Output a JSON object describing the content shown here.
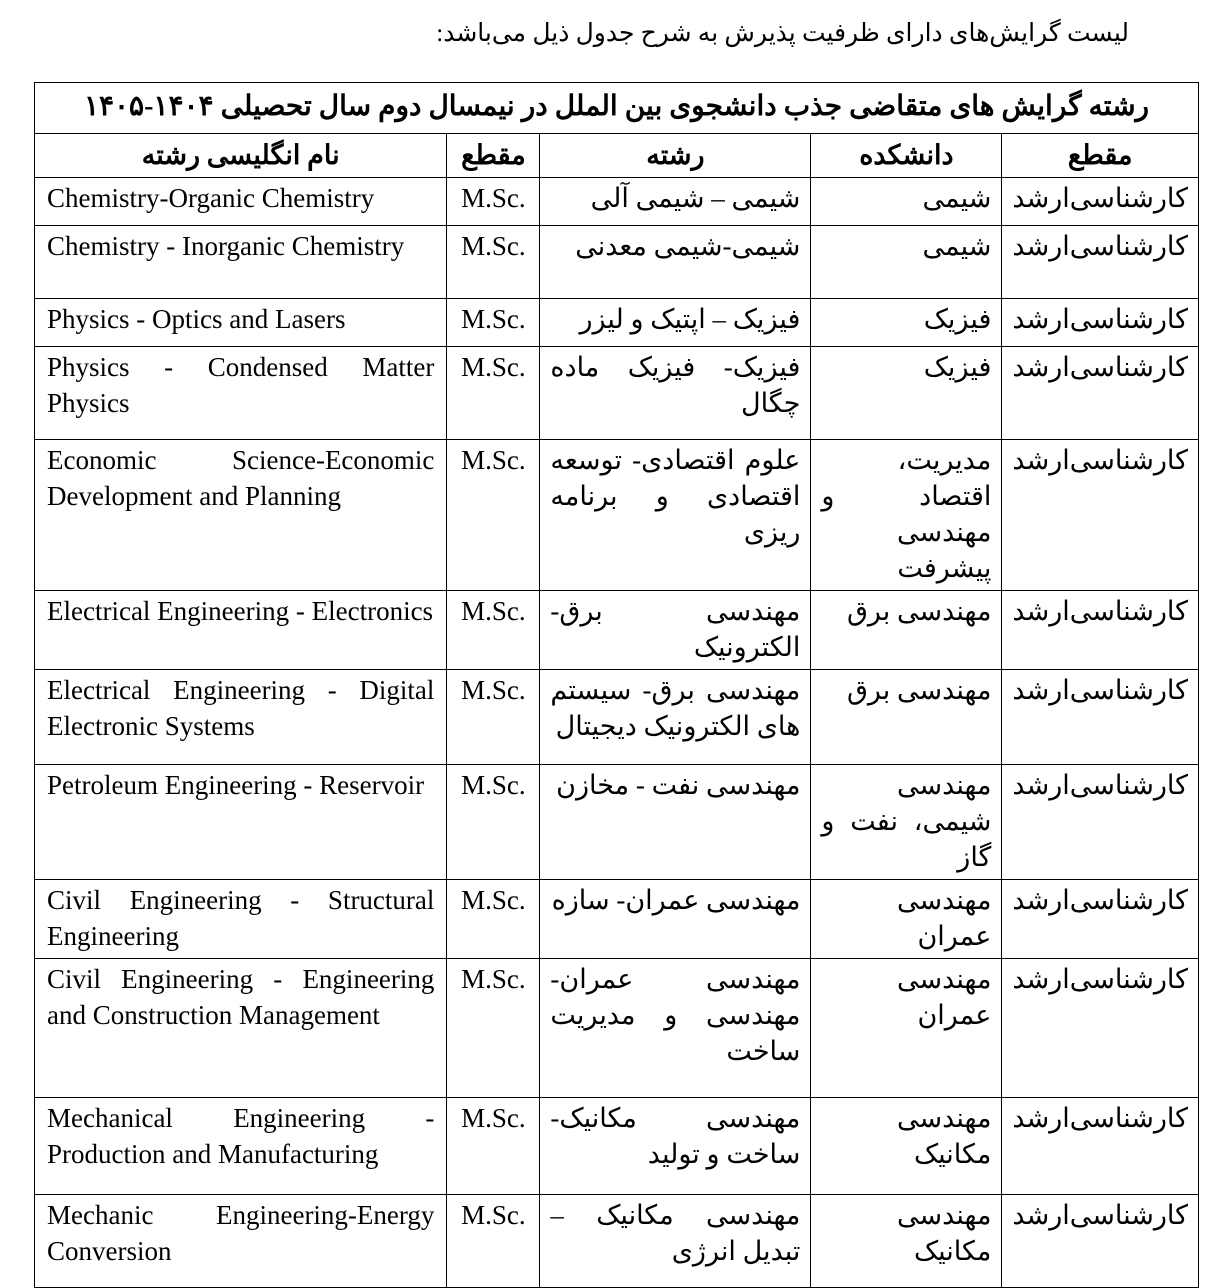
{
  "intro": "لیست گرایش‌های دارای ظرفیت پذیرش به شرح جدول ذیل می‌باشد:",
  "table": {
    "title": "رشته گرایش های متقاضی جذب دانشجوی بین الملل در نیمسال دوم سال تحصیلی ۱۴۰۴-۱۴۰۵",
    "headers": [
      "مقطع",
      "دانشکده",
      "رشته",
      "مقطع",
      "نام انگلیسی رشته"
    ],
    "rows": [
      {
        "level": "کارشناسی‌ارشد",
        "faculty": "شیمی",
        "field": "شیمی – شیمی آلی",
        "degree": "M.Sc.",
        "english": "Chemistry-Organic Chemistry"
      },
      {
        "level": "کارشناسی‌ارشد",
        "faculty": "شیمی",
        "field": "شیمی-شیمی معدنی",
        "degree": "M.Sc.",
        "english": "Chemistry - Inorganic Chemistry"
      },
      {
        "level": "کارشناسی‌ارشد",
        "faculty": "فیزیک",
        "field": "فیزیک – اپتیک و لیزر",
        "degree": "M.Sc.",
        "english": "Physics - Optics and Lasers"
      },
      {
        "level": "کارشناسی‌ارشد",
        "faculty": "فیزیک",
        "field": "فیزیک- فیزیک ماده چگال",
        "degree": "M.Sc.",
        "english": "Physics - Condensed Matter Physics"
      },
      {
        "level": "کارشناسی‌ارشد",
        "faculty": "مدیریت، اقتصاد و مهندسی پیشرفت",
        "field": "علوم اقتصادی- توسعه اقتصادی و برنامه ریزی",
        "degree": "M.Sc.",
        "english": "Economic Science-Economic Development and Planning"
      },
      {
        "level": "کارشناسی‌ارشد",
        "faculty": "مهندسی برق",
        "field": "مهندسی برق-الکترونیک",
        "degree": "M.Sc.",
        "english": "Electrical Engineering - Electronics"
      },
      {
        "level": "کارشناسی‌ارشد",
        "faculty": "مهندسی برق",
        "field": "مهندسی برق- سیستم های الکترونیک دیجیتال",
        "degree": "M.Sc.",
        "english": "Electrical Engineering - Digital Electronic Systems"
      },
      {
        "level": "کارشناسی‌ارشد",
        "faculty": "مهندسی شیمی، نفت و گاز",
        "field": "مهندسی نفت - مخازن",
        "degree": "M.Sc.",
        "english": "Petroleum Engineering - Reservoir"
      },
      {
        "level": "کارشناسی‌ارشد",
        "faculty": "مهندسی عمران",
        "field": "مهندسی عمران- سازه",
        "degree": "M.Sc.",
        "english": "Civil Engineering - Structural Engineering"
      },
      {
        "level": "کارشناسی‌ارشد",
        "faculty": "مهندسی عمران",
        "field": "مهندسی عمران- مهندسی و مدیریت ساخت",
        "degree": "M.Sc.",
        "english": "Civil Engineering - Engineering and Construction Management"
      },
      {
        "level": "کارشناسی‌ارشد",
        "faculty": "مهندسی مکانیک",
        "field": "مهندسی مکانیک- ساخت و تولید",
        "degree": "M.Sc.",
        "english": "Mechanical Engineering - Production and Manufacturing"
      },
      {
        "level": "کارشناسی‌ارشد",
        "faculty": "مهندسی مکانیک",
        "field": "مهندسی مکانیک – تبدیل انرژی",
        "degree": "M.Sc.",
        "english": "Mechanic Engineering-Energy Conversion"
      }
    ]
  }
}
